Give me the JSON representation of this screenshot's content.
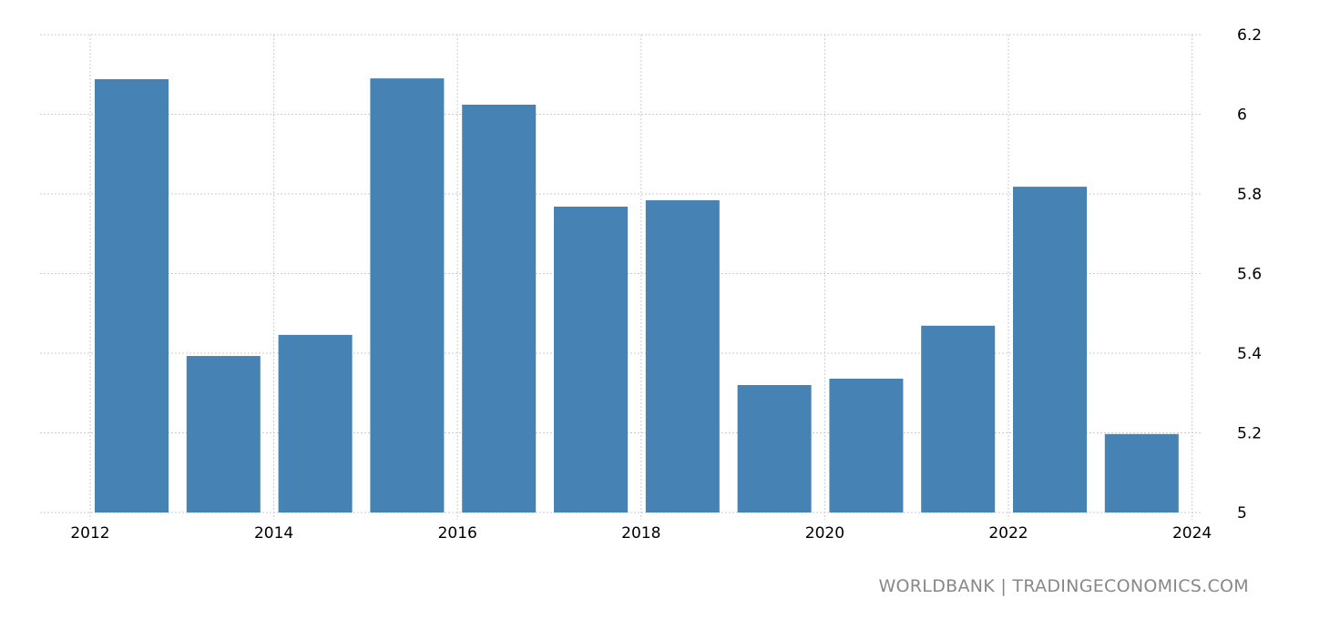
{
  "chart_data": {
    "type": "bar",
    "title": "",
    "xlabel": "",
    "ylabel": "",
    "categories": [
      "2012",
      "2013",
      "2014",
      "2015",
      "2016",
      "2017",
      "2018",
      "2019",
      "2020",
      "2021",
      "2022",
      "2023"
    ],
    "values": [
      6.088,
      5.393,
      5.446,
      6.09,
      6.024,
      5.768,
      5.784,
      5.32,
      5.336,
      5.469,
      5.818,
      5.197
    ],
    "ylim": [
      5,
      6.2
    ],
    "xlim": [
      2012,
      2024
    ],
    "yticks": [
      "5",
      "5.2",
      "5.4",
      "5.6",
      "5.8",
      "6",
      "6.2"
    ],
    "ytick_values": [
      5,
      5.2,
      5.4,
      5.6,
      5.8,
      6,
      6.2
    ],
    "xticks": [
      "2012",
      "2014",
      "2016",
      "2018",
      "2020",
      "2022",
      "2024"
    ],
    "xtick_values": [
      2012,
      2014,
      2016,
      2018,
      2020,
      2022,
      2024
    ],
    "grid": true,
    "bar_color": "#4682b4",
    "legend": "none"
  },
  "footer": {
    "source": "WORLDBANK | TRADINGECONOMICS.COM"
  }
}
